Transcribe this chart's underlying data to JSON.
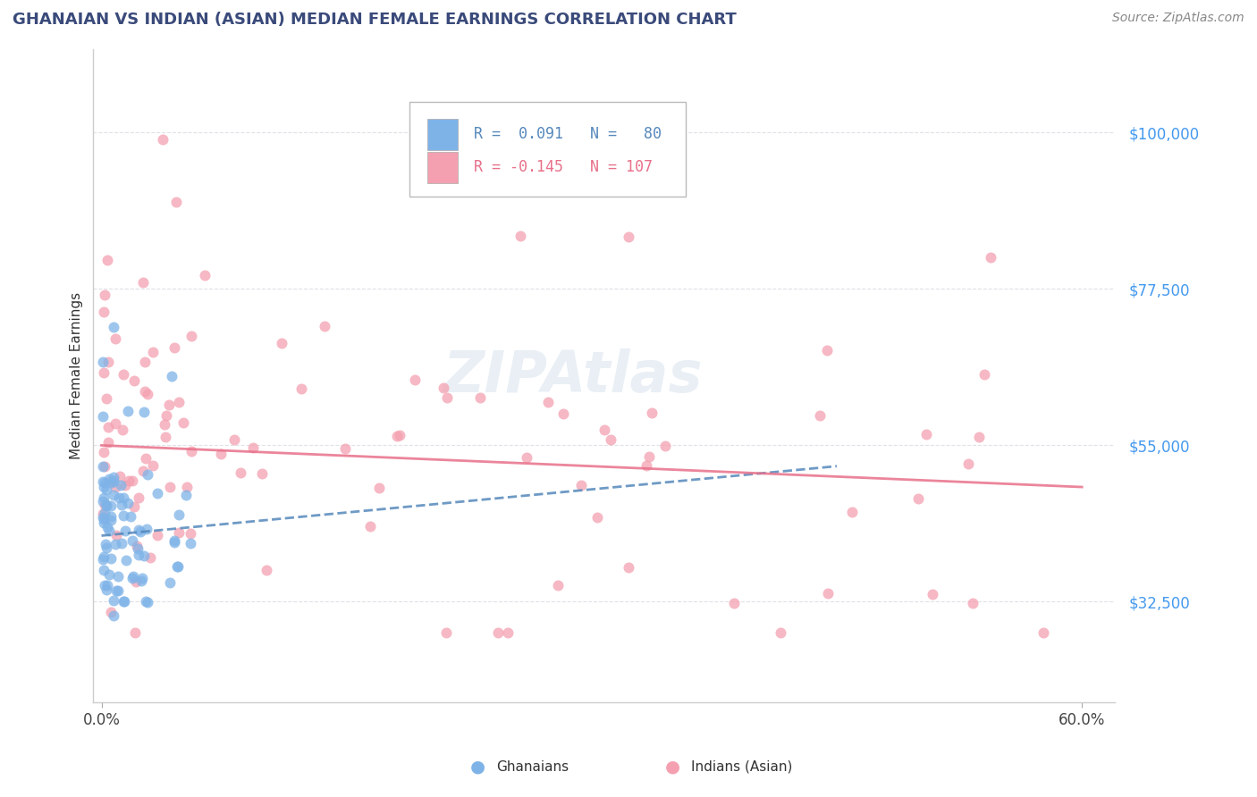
{
  "title": "GHANAIAN VS INDIAN (ASIAN) MEDIAN FEMALE EARNINGS CORRELATION CHART",
  "source": "Source: ZipAtlas.com",
  "ylabel": "Median Female Earnings",
  "xlim": [
    -0.005,
    0.62
  ],
  "ylim": [
    18000,
    112000
  ],
  "yticks": [
    32500,
    55000,
    77500,
    100000
  ],
  "ytick_labels": [
    "$32,500",
    "$55,000",
    "$77,500",
    "$100,000"
  ],
  "xticks": [
    0.0,
    0.6
  ],
  "xtick_labels": [
    "0.0%",
    "60.0%"
  ],
  "watermark": "ZIPAtlas",
  "ghanaian_color": "#7EB3E8",
  "indian_color": "#F4A0B0",
  "trend_blue_color": "#5588BB",
  "trend_pink_color": "#E8708A",
  "background": "#FFFFFF",
  "title_color": "#3A4A7A",
  "source_color": "#888888",
  "ytick_color": "#4499EE",
  "grid_color": "#E0E0E8",
  "spine_color": "#CCCCCC"
}
